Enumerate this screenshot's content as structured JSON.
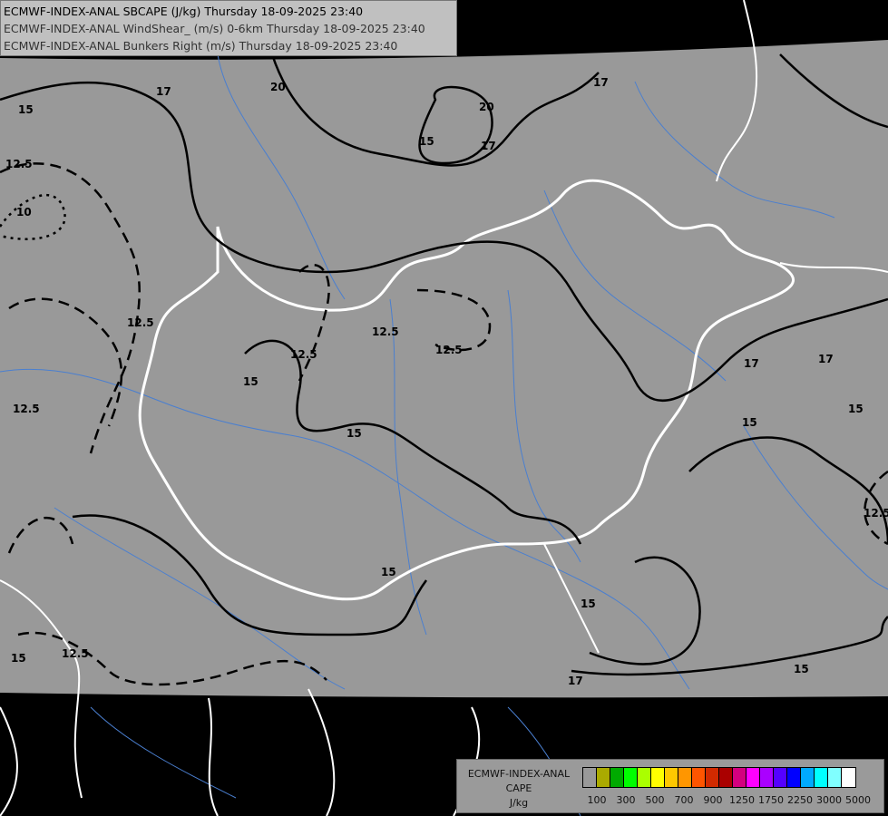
{
  "header": {
    "line1": "ECMWF-INDEX-ANAL SBCAPE (J/kg) Thursday 18-09-2025 23:40",
    "line2": "ECMWF-INDEX-ANAL WindShear_ (m/s) 0-6km Thursday 18-09-2025 23:40",
    "line3": "ECMWF-INDEX-ANAL Bunkers Right (m/s) Thursday 18-09-2025 23:40"
  },
  "legend": {
    "title1": "ECMWF-INDEX-ANAL",
    "title2": "CAPE",
    "units": "J/kg",
    "colors": [
      "#999999",
      "#aaaa00",
      "#00aa00",
      "#00ff00",
      "#aaff00",
      "#ffff00",
      "#ffc800",
      "#ff9600",
      "#ff5500",
      "#d22a00",
      "#aa0000",
      "#d4007f",
      "#ff00ff",
      "#aa00ff",
      "#5500ff",
      "#0000ff",
      "#00aaff",
      "#00ffff",
      "#80ffff",
      "#ffffff"
    ],
    "ticks": [
      "100",
      "300",
      "500",
      "700",
      "900",
      "1250",
      "1750",
      "2250",
      "3000",
      "5000"
    ]
  },
  "map": {
    "field_color": "#999999",
    "border_color": "#ffffff",
    "river_color": "#4a7fd0",
    "contour_labels": [
      "15",
      "17",
      "20",
      "20",
      "12.5",
      "10",
      "15",
      "17",
      "12.5",
      "12.5",
      "12.5",
      "12.5",
      "15",
      "15",
      "15",
      "17",
      "17",
      "15",
      "12.5",
      "15",
      "17",
      "15",
      "12.5",
      "12.5",
      "15",
      "15",
      "17"
    ]
  }
}
